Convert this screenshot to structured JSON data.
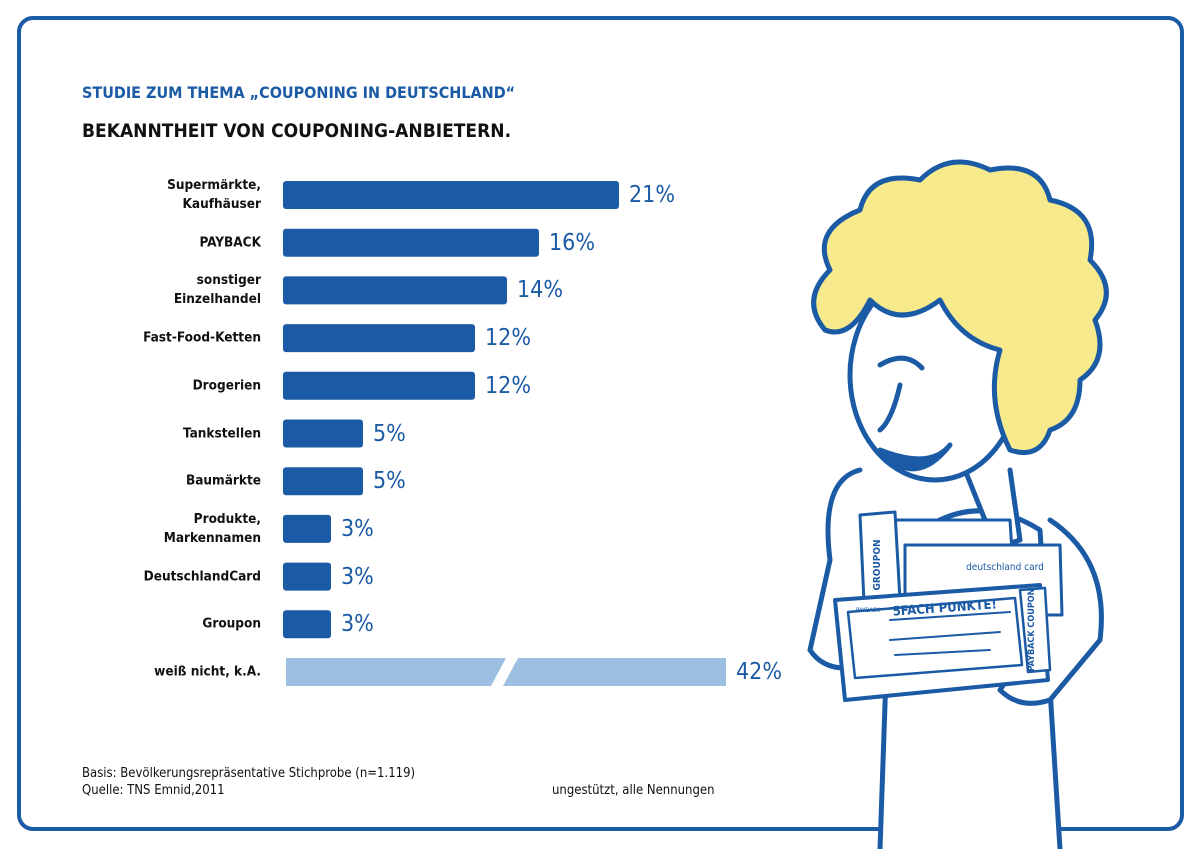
{
  "chart_data": {
    "type": "hbar",
    "title": "STUDIE ZUM THEMA „COUPONING IN DEUTSCHLAND“",
    "subtitle": "BEKANNTHEIT VON COUPONING-ANBIETERN.",
    "categories": [
      "Supermärkte,\nKaufhäuser",
      "PAYBACK",
      "sonstiger\nEinzelhandel",
      "Fast-Food-Ketten",
      "Drogerien",
      "Tankstellen",
      "Baumärkte",
      "Produkte,\nMarkennamen",
      "DeutschlandCard",
      "Groupon",
      "weiß nicht, k.A."
    ],
    "values": [
      21,
      16,
      14,
      12,
      12,
      5,
      5,
      3,
      3,
      3,
      42
    ],
    "value_labels": [
      "21%",
      "16%",
      "14%",
      "12%",
      "12%",
      "5%",
      "5%",
      "3%",
      "3%",
      "3%",
      "42%"
    ],
    "colors": [
      "#1b5aa5",
      "#1b5aa5",
      "#1b5aa5",
      "#1b5aa5",
      "#1b5aa5",
      "#1b5aa5",
      "#1b5aa5",
      "#1b5aa5",
      "#1b5aa5",
      "#1b5aa5",
      "#9dc0e2"
    ],
    "notes": [
      "Basis: Bevölkerungsrepräsentative Stichprobe (n=1.119)",
      "Quelle: TNS Emnid,2011"
    ],
    "caption": "ungestützt, alle Nennungen"
  },
  "illustration": {
    "texts": [
      "GROUPON",
      "deutschland card",
      "5FACH PUNKTE!",
      "PAYBACK COUPON",
      "PAYBACK"
    ]
  }
}
